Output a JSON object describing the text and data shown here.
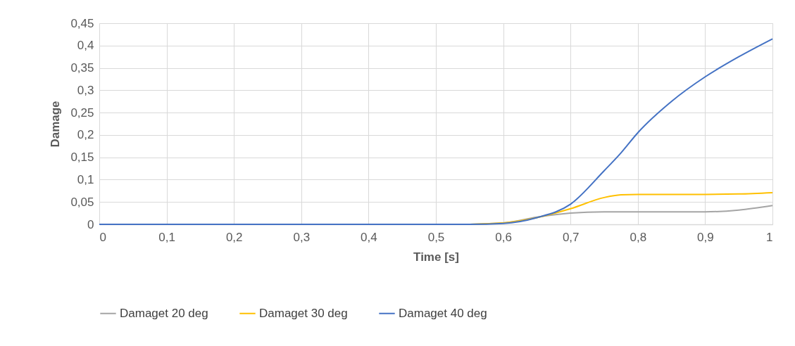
{
  "chart_data": {
    "type": "line",
    "xlabel": "Time [s]",
    "ylabel": "Damage",
    "x": [
      0,
      0.1,
      0.2,
      0.3,
      0.4,
      0.5,
      0.55,
      0.6,
      0.65,
      0.7,
      0.75,
      0.775,
      0.8,
      0.85,
      0.9,
      0.95,
      1
    ],
    "series": [
      {
        "name": "Damaget 20 deg",
        "color": "#a5a5a5",
        "values": [
          null,
          null,
          null,
          null,
          null,
          null,
          0,
          0.003,
          0.016,
          0.025,
          0.028,
          0.028,
          0.028,
          0.028,
          0.028,
          0.032,
          0.042
        ]
      },
      {
        "name": "Damaget 30 deg",
        "color": "#ffc000",
        "values": [
          null,
          null,
          null,
          null,
          null,
          null,
          0,
          0.003,
          0.015,
          0.035,
          0.06,
          0.066,
          0.067,
          0.067,
          0.067,
          0.068,
          0.071
        ]
      },
      {
        "name": "Damaget 40 deg",
        "color": "#4472c4",
        "values": [
          0,
          0,
          0,
          0,
          0,
          0,
          0,
          0.002,
          0.015,
          0.045,
          0.12,
          0.16,
          0.205,
          0.275,
          0.33,
          0.375,
          0.415
        ]
      }
    ],
    "xlim": [
      0,
      1
    ],
    "xticks": [
      {
        "value": 0,
        "label": "0"
      },
      {
        "value": 0.1,
        "label": "0,1"
      },
      {
        "value": 0.2,
        "label": "0,2"
      },
      {
        "value": 0.3,
        "label": "0,3"
      },
      {
        "value": 0.4,
        "label": "0,4"
      },
      {
        "value": 0.5,
        "label": "0,5"
      },
      {
        "value": 0.6,
        "label": "0,6"
      },
      {
        "value": 0.7,
        "label": "0,7"
      },
      {
        "value": 0.8,
        "label": "0,8"
      },
      {
        "value": 0.9,
        "label": "0,9"
      },
      {
        "value": 1,
        "label": "1"
      }
    ],
    "ylim": [
      0,
      0.45
    ],
    "yticks": [
      {
        "value": 0,
        "label": "0"
      },
      {
        "value": 0.05,
        "label": "0,05"
      },
      {
        "value": 0.1,
        "label": "0,1"
      },
      {
        "value": 0.15,
        "label": "0,15"
      },
      {
        "value": 0.2,
        "label": "0,2"
      },
      {
        "value": 0.25,
        "label": "0,25"
      },
      {
        "value": 0.3,
        "label": "0,3"
      },
      {
        "value": 0.35,
        "label": "0,35"
      },
      {
        "value": 0.4,
        "label": "0,4"
      },
      {
        "value": 0.45,
        "label": "0,45"
      }
    ],
    "grid": true,
    "legend": "bottom",
    "marker": "none",
    "line_style": "solid"
  }
}
